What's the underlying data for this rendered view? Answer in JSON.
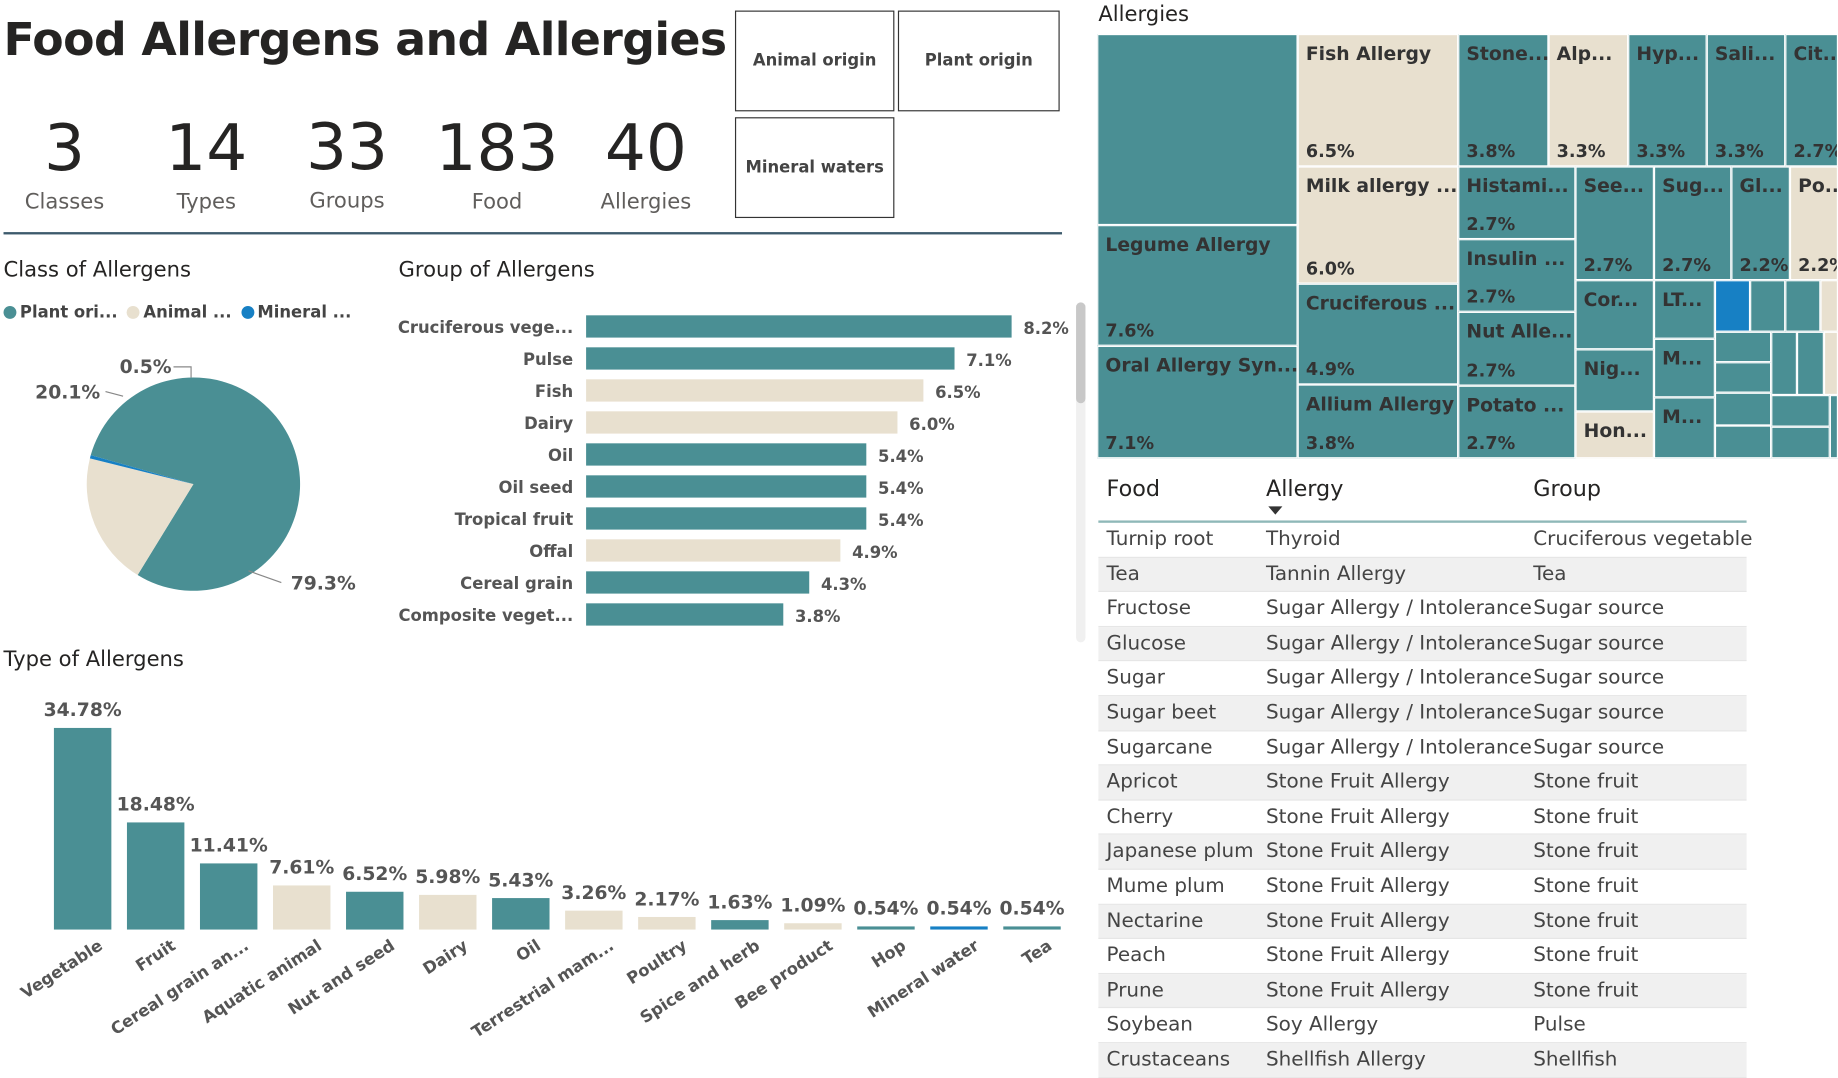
{
  "header": {
    "title": "Food Allergens and Allergies"
  },
  "kpis": [
    {
      "value": "3",
      "label": "Classes"
    },
    {
      "value": "14",
      "label": "Types"
    },
    {
      "value": "33",
      "label": "Groups"
    },
    {
      "value": "183",
      "label": "Food"
    },
    {
      "value": "40",
      "label": "Allergies"
    }
  ],
  "slicers": {
    "animal": "Animal origin",
    "plant": "Plant origin",
    "mineral": "Mineral waters"
  },
  "colors": {
    "teal": "#4a8f94",
    "beige": "#e8e0cf",
    "blue": "#1780c4"
  },
  "class_chart": {
    "title": "Class of Allergens",
    "legend": [
      "Plant ori...",
      "Animal ...",
      "Mineral ..."
    ]
  },
  "group_chart": {
    "title": "Group of Allergens"
  },
  "type_chart": {
    "title": "Type of Allergens"
  },
  "treemap": {
    "title": "Allergies"
  },
  "table": {
    "columns": [
      "Food",
      "Allergy",
      "Group"
    ],
    "rows": [
      [
        "Turnip root",
        "Thyroid",
        "Cruciferous vegetable"
      ],
      [
        "Tea",
        "Tannin Allergy",
        "Tea"
      ],
      [
        "Fructose",
        "Sugar Allergy / Intolerance",
        "Sugar source"
      ],
      [
        "Glucose",
        "Sugar Allergy / Intolerance",
        "Sugar source"
      ],
      [
        "Sugar",
        "Sugar Allergy / Intolerance",
        "Sugar source"
      ],
      [
        "Sugar beet",
        "Sugar Allergy / Intolerance",
        "Sugar source"
      ],
      [
        "Sugarcane",
        "Sugar Allergy / Intolerance",
        "Sugar source"
      ],
      [
        "Apricot",
        "Stone Fruit Allergy",
        "Stone fruit"
      ],
      [
        "Cherry",
        "Stone Fruit Allergy",
        "Stone fruit"
      ],
      [
        "Japanese plum",
        "Stone Fruit Allergy",
        "Stone fruit"
      ],
      [
        "Mume plum",
        "Stone Fruit Allergy",
        "Stone fruit"
      ],
      [
        "Nectarine",
        "Stone Fruit Allergy",
        "Stone fruit"
      ],
      [
        "Peach",
        "Stone Fruit Allergy",
        "Stone fruit"
      ],
      [
        "Prune",
        "Stone Fruit Allergy",
        "Stone fruit"
      ],
      [
        "Soybean",
        "Soy Allergy",
        "Pulse"
      ],
      [
        "Crustaceans",
        "Shellfish Allergy",
        "Shellfish"
      ]
    ]
  },
  "chart_data": [
    {
      "type": "pie",
      "title": "Class of Allergens",
      "categories": [
        "Plant ori...",
        "Animal ...",
        "Mineral ..."
      ],
      "values": [
        79.3,
        20.1,
        0.5
      ],
      "labels": [
        "79.3%",
        "20.1%",
        "0.5%"
      ],
      "colors": [
        "#4a8f94",
        "#e8e0cf",
        "#1780c4"
      ],
      "legend": "top-left"
    },
    {
      "type": "bar",
      "orientation": "horizontal",
      "title": "Group of Allergens",
      "categories": [
        "Cruciferous vege...",
        "Pulse",
        "Fish",
        "Dairy",
        "Oil",
        "Oil seed",
        "Tropical fruit",
        "Offal",
        "Cereal grain",
        "Composite veget..."
      ],
      "values": [
        8.2,
        7.1,
        6.5,
        6.0,
        5.4,
        5.4,
        5.4,
        4.9,
        4.3,
        3.8
      ],
      "labels": [
        "8.2%",
        "7.1%",
        "6.5%",
        "6.0%",
        "5.4%",
        "5.4%",
        "5.4%",
        "4.9%",
        "4.3%",
        "3.8%"
      ],
      "bar_colors": [
        "teal",
        "teal",
        "beige",
        "beige",
        "teal",
        "teal",
        "teal",
        "beige",
        "teal",
        "teal"
      ]
    },
    {
      "type": "bar",
      "title": "Type of Allergens",
      "categories": [
        "Vegetable",
        "Fruit",
        "Cereal grain an...",
        "Aquatic animal",
        "Nut and seed",
        "Dairy",
        "Oil",
        "Terrestrial mam...",
        "Poultry",
        "Spice and herb",
        "Bee product",
        "Hop",
        "Mineral water",
        "Tea"
      ],
      "values": [
        34.78,
        18.48,
        11.41,
        7.61,
        6.52,
        5.98,
        5.43,
        3.26,
        2.17,
        1.63,
        1.09,
        0.54,
        0.54,
        0.54
      ],
      "labels": [
        "34.78%",
        "18.48%",
        "11.41%",
        "7.61%",
        "6.52%",
        "5.98%",
        "5.43%",
        "3.26%",
        "2.17%",
        "1.63%",
        "1.09%",
        "0.54%",
        "0.54%",
        "0.54%"
      ],
      "bar_colors": [
        "teal",
        "teal",
        "teal",
        "beige",
        "teal",
        "beige",
        "teal",
        "beige",
        "beige",
        "teal",
        "beige",
        "teal",
        "blue",
        "teal"
      ]
    },
    {
      "type": "treemap",
      "title": "Allergies",
      "items": [
        {
          "name": "",
          "value": "",
          "color": "teal"
        },
        {
          "name": "Legume Allergy",
          "value": "7.6%",
          "color": "teal"
        },
        {
          "name": "Oral Allergy Syn...",
          "value": "7.1%",
          "color": "teal"
        },
        {
          "name": "Fish Allergy",
          "value": "6.5%",
          "color": "beige"
        },
        {
          "name": "Milk allergy ...",
          "value": "6.0%",
          "color": "beige"
        },
        {
          "name": "Cruciferous ...",
          "value": "4.9%",
          "color": "teal"
        },
        {
          "name": "Allium Allergy",
          "value": "3.8%",
          "color": "teal"
        },
        {
          "name": "Stone...",
          "value": "3.8%",
          "color": "teal"
        },
        {
          "name": "Alp...",
          "value": "3.3%",
          "color": "beige"
        },
        {
          "name": "Hyp...",
          "value": "3.3%",
          "color": "teal"
        },
        {
          "name": "Sali...",
          "value": "3.3%",
          "color": "teal"
        },
        {
          "name": "Cit...",
          "value": "2.7%",
          "color": "teal"
        },
        {
          "name": "Histami...",
          "value": "2.7%",
          "color": "teal"
        },
        {
          "name": "Insulin ...",
          "value": "2.7%",
          "color": "teal"
        },
        {
          "name": "Nut Alle...",
          "value": "2.7%",
          "color": "teal"
        },
        {
          "name": "Potato ...",
          "value": "2.7%",
          "color": "teal"
        },
        {
          "name": "See...",
          "value": "2.7%",
          "color": "teal"
        },
        {
          "name": "Sug...",
          "value": "2.7%",
          "color": "teal"
        },
        {
          "name": "Gl...",
          "value": "2.2%",
          "color": "teal"
        },
        {
          "name": "Po...",
          "value": "2.2%",
          "color": "beige"
        },
        {
          "name": "Cor...",
          "value": "",
          "color": "teal"
        },
        {
          "name": "Nig...",
          "value": "",
          "color": "teal"
        },
        {
          "name": "Hon...",
          "value": "",
          "color": "beige"
        },
        {
          "name": "LT...",
          "value": "",
          "color": "teal"
        },
        {
          "name": "M...",
          "value": "",
          "color": "teal"
        },
        {
          "name": "M...",
          "value": "",
          "color": "teal"
        }
      ]
    }
  ]
}
